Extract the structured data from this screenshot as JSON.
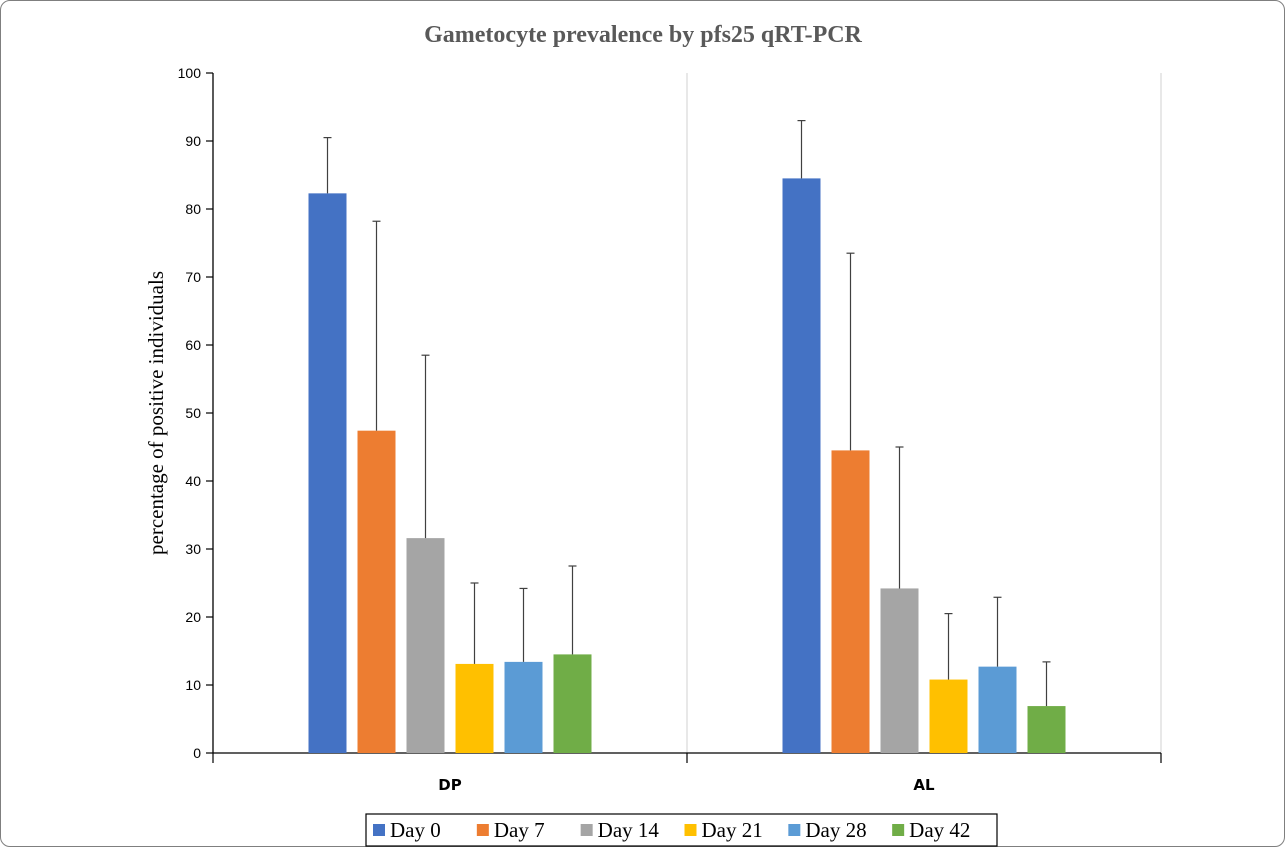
{
  "chart_data": {
    "type": "bar",
    "title": "Gametocyte prevalence by pfs25 qRT-PCR",
    "xlabel": "",
    "ylabel": "percentage of positive individuals",
    "ylim": [
      0,
      100
    ],
    "yticks": [
      0,
      10,
      20,
      30,
      40,
      50,
      60,
      70,
      80,
      90,
      100
    ],
    "grid": false,
    "legend_position": "bottom",
    "categories": [
      "DP",
      "AL"
    ],
    "series": [
      {
        "name": "Day 0",
        "color": "#4472C4",
        "values": [
          82.3,
          84.5
        ],
        "error_upper": [
          90.5,
          93.0
        ]
      },
      {
        "name": "Day 7",
        "color": "#ED7D31",
        "values": [
          47.4,
          44.5
        ],
        "error_upper": [
          78.2,
          73.5
        ]
      },
      {
        "name": "Day 14",
        "color": "#A5A5A5",
        "values": [
          31.6,
          24.2
        ],
        "error_upper": [
          58.5,
          45.0
        ]
      },
      {
        "name": "Day 21",
        "color": "#FFC000",
        "values": [
          13.1,
          10.8
        ],
        "error_upper": [
          25.0,
          20.5
        ]
      },
      {
        "name": "Day 28",
        "color": "#5B9BD5",
        "values": [
          13.4,
          12.7
        ],
        "error_upper": [
          24.2,
          22.9
        ]
      },
      {
        "name": "Day 42",
        "color": "#70AD47",
        "values": [
          14.5,
          6.9
        ],
        "error_upper": [
          27.5,
          13.4
        ]
      }
    ]
  }
}
